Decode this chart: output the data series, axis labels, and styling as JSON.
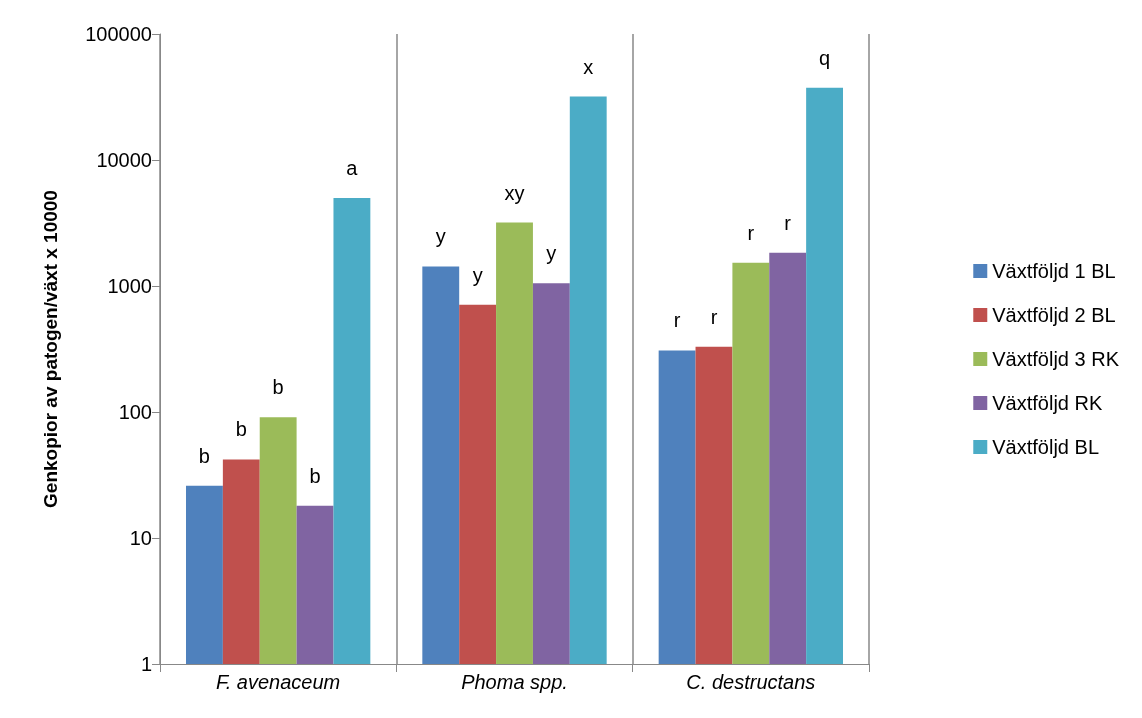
{
  "chart_data": {
    "type": "bar",
    "ylabel": "Genkopior av patogen/växt x 10000",
    "categories": [
      "F. avenaceum",
      "Phoma spp.",
      "C. destructans"
    ],
    "series": [
      {
        "name": "Växtföljd 1 BL",
        "color": "#4f81bd",
        "values": [
          26,
          1430,
          308
        ],
        "value_labels": [
          "b",
          "y",
          "r"
        ]
      },
      {
        "name": "Växtföljd 2 BL",
        "color": "#c0504d",
        "values": [
          42,
          710,
          330
        ],
        "value_labels": [
          "b",
          "y",
          "r"
        ]
      },
      {
        "name": "Växtföljd 3 RK",
        "color": "#9bbb59",
        "values": [
          91,
          3190,
          1530
        ],
        "value_labels": [
          "b",
          "xy",
          "r"
        ]
      },
      {
        "name": "Växtföljd RK",
        "color": "#8064a2",
        "values": [
          18,
          1050,
          1840
        ],
        "value_labels": [
          "b",
          "y",
          "r"
        ]
      },
      {
        "name": "Växtföljd BL",
        "color": "#4bacc6",
        "values": [
          5000,
          31900,
          37500
        ],
        "value_labels": [
          "a",
          "x",
          "q"
        ]
      }
    ],
    "log": true,
    "ylim": [
      1,
      100000
    ],
    "yticks": [
      1,
      10,
      100,
      1000,
      10000,
      100000
    ],
    "grid": "x",
    "legend": "right"
  }
}
